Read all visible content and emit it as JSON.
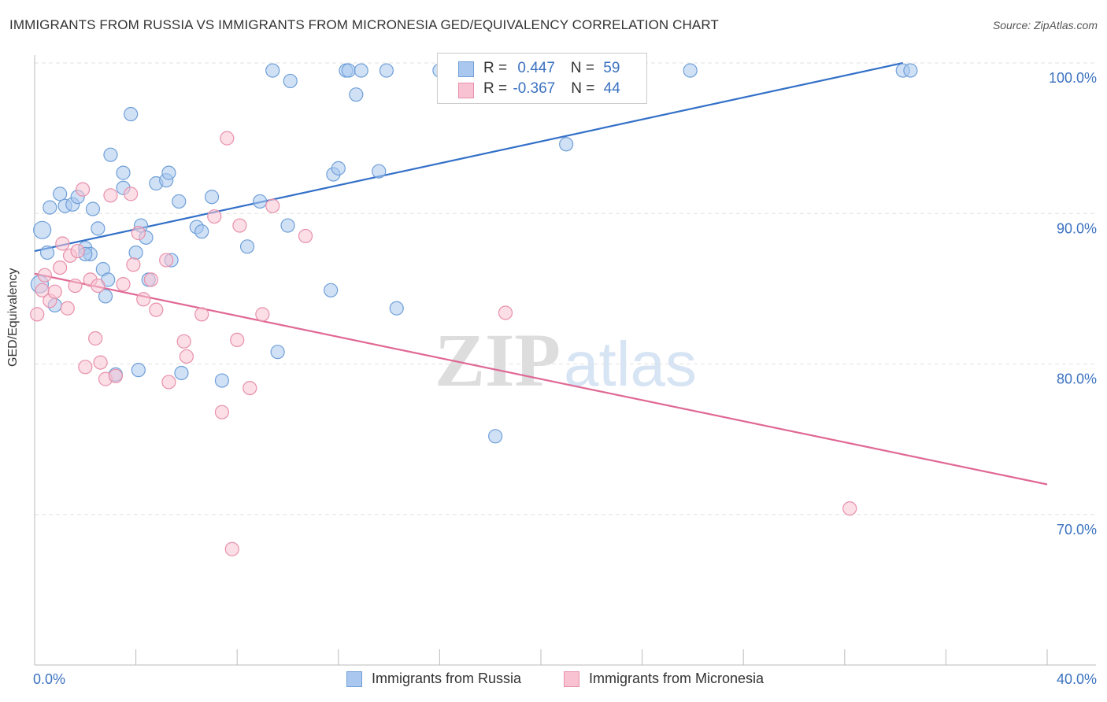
{
  "header": {
    "title": "IMMIGRANTS FROM RUSSIA VS IMMIGRANTS FROM MICRONESIA GED/EQUIVALENCY CORRELATION CHART",
    "source": "Source: ZipAtlas.com"
  },
  "watermark": {
    "part1": "ZIP",
    "part2": "atlas"
  },
  "legend": {
    "russia": {
      "r_label": "R = ",
      "r_value": "0.447",
      "n_label": "N = ",
      "n_value": "59"
    },
    "micronesia": {
      "r_label": "R = ",
      "r_value": "-0.367",
      "n_label": "N = ",
      "n_value": "44"
    }
  },
  "colors": {
    "russia_fill": "#aac8ef",
    "russia_stroke": "#6f9fd8",
    "russia_line": "#3370c8",
    "micronesia_fill": "#f8c2d2",
    "micronesia_stroke": "#e890ab",
    "micronesia_line": "#e06894",
    "tick_text": "#3b72c0",
    "grid": "#e2e2e2"
  },
  "chart_data": {
    "type": "scatter",
    "title": "IMMIGRANTS FROM RUSSIA VS IMMIGRANTS FROM MICRONESIA GED/EQUIVALENCY CORRELATION CHART",
    "xlabel": "",
    "ylabel": "GED/Equivalency",
    "xlim": [
      0,
      40
    ],
    "ylim": [
      60,
      100
    ],
    "x_tick_labels": [
      "0.0%",
      "40.0%"
    ],
    "y_ticks": [
      70,
      80,
      90,
      100
    ],
    "y_tick_labels": [
      "70.0%",
      "80.0%",
      "90.0%",
      "100.0%"
    ],
    "grid": true,
    "legend_position": "top-center",
    "series": [
      {
        "name": "Immigrants from Russia",
        "r": 0.447,
        "n": 59,
        "trend": [
          [
            0,
            87.5
          ],
          [
            34.3,
            100
          ]
        ],
        "points": [
          [
            0.3,
            88.9
          ],
          [
            0.5,
            87.4
          ],
          [
            0.6,
            90.4
          ],
          [
            0.8,
            83.9
          ],
          [
            1.0,
            91.3
          ],
          [
            1.2,
            90.5
          ],
          [
            1.5,
            90.6
          ],
          [
            1.7,
            91.1
          ],
          [
            2.0,
            87.7
          ],
          [
            2.2,
            87.3
          ],
          [
            2.3,
            90.3
          ],
          [
            2.5,
            89.0
          ],
          [
            2.7,
            86.3
          ],
          [
            2.8,
            84.5
          ],
          [
            2.9,
            85.6
          ],
          [
            3.0,
            93.9
          ],
          [
            3.2,
            79.3
          ],
          [
            3.5,
            91.7
          ],
          [
            3.5,
            92.7
          ],
          [
            3.8,
            96.6
          ],
          [
            4.0,
            87.4
          ],
          [
            4.1,
            79.6
          ],
          [
            4.2,
            89.2
          ],
          [
            4.4,
            88.4
          ],
          [
            4.5,
            85.6
          ],
          [
            4.8,
            92.0
          ],
          [
            5.2,
            92.2
          ],
          [
            5.3,
            92.7
          ],
          [
            5.4,
            86.9
          ],
          [
            5.7,
            90.8
          ],
          [
            5.8,
            79.4
          ],
          [
            6.4,
            89.1
          ],
          [
            6.6,
            88.8
          ],
          [
            7.0,
            91.1
          ],
          [
            7.4,
            78.9
          ],
          [
            8.4,
            87.8
          ],
          [
            8.9,
            90.8
          ],
          [
            9.4,
            99.5
          ],
          [
            9.6,
            80.8
          ],
          [
            10.0,
            89.2
          ],
          [
            10.1,
            98.8
          ],
          [
            11.7,
            84.9
          ],
          [
            11.8,
            92.6
          ],
          [
            12.0,
            93.0
          ],
          [
            12.3,
            99.5
          ],
          [
            12.4,
            99.5
          ],
          [
            12.7,
            97.9
          ],
          [
            12.9,
            99.5
          ],
          [
            13.6,
            92.8
          ],
          [
            13.9,
            99.5
          ],
          [
            14.3,
            83.7
          ],
          [
            16.0,
            99.5
          ],
          [
            18.2,
            75.2
          ],
          [
            21.0,
            94.6
          ],
          [
            25.9,
            99.5
          ],
          [
            34.3,
            99.5
          ],
          [
            34.6,
            99.5
          ],
          [
            0.2,
            85.3
          ],
          [
            2.0,
            87.3
          ]
        ]
      },
      {
        "name": "Immigrants from Micronesia",
        "r": -0.367,
        "n": 44,
        "trend": [
          [
            0,
            86.0
          ],
          [
            40,
            72.0
          ]
        ],
        "points": [
          [
            0.1,
            83.3
          ],
          [
            0.3,
            84.9
          ],
          [
            0.4,
            85.9
          ],
          [
            0.6,
            84.2
          ],
          [
            0.8,
            84.8
          ],
          [
            1.0,
            86.4
          ],
          [
            1.1,
            88.0
          ],
          [
            1.3,
            83.7
          ],
          [
            1.4,
            87.2
          ],
          [
            1.6,
            85.2
          ],
          [
            1.7,
            87.5
          ],
          [
            1.9,
            91.6
          ],
          [
            2.0,
            79.8
          ],
          [
            2.2,
            85.6
          ],
          [
            2.4,
            81.7
          ],
          [
            2.5,
            85.2
          ],
          [
            2.6,
            80.1
          ],
          [
            2.8,
            79.0
          ],
          [
            3.0,
            91.2
          ],
          [
            3.2,
            79.2
          ],
          [
            3.5,
            85.3
          ],
          [
            3.8,
            91.3
          ],
          [
            3.9,
            86.6
          ],
          [
            4.1,
            88.7
          ],
          [
            4.3,
            84.3
          ],
          [
            4.6,
            85.6
          ],
          [
            4.8,
            83.6
          ],
          [
            5.2,
            86.9
          ],
          [
            5.3,
            78.8
          ],
          [
            5.9,
            81.5
          ],
          [
            6.0,
            80.5
          ],
          [
            6.6,
            83.3
          ],
          [
            7.1,
            89.8
          ],
          [
            7.4,
            76.8
          ],
          [
            7.6,
            95.0
          ],
          [
            7.8,
            67.7
          ],
          [
            8.0,
            81.6
          ],
          [
            8.1,
            89.2
          ],
          [
            8.5,
            78.4
          ],
          [
            9.0,
            83.3
          ],
          [
            9.4,
            90.5
          ],
          [
            10.7,
            88.5
          ],
          [
            18.6,
            83.4
          ],
          [
            32.2,
            70.4
          ]
        ]
      }
    ]
  },
  "bottom_legend": {
    "russia_label": "Immigrants from Russia",
    "micronesia_label": "Immigrants from Micronesia"
  }
}
